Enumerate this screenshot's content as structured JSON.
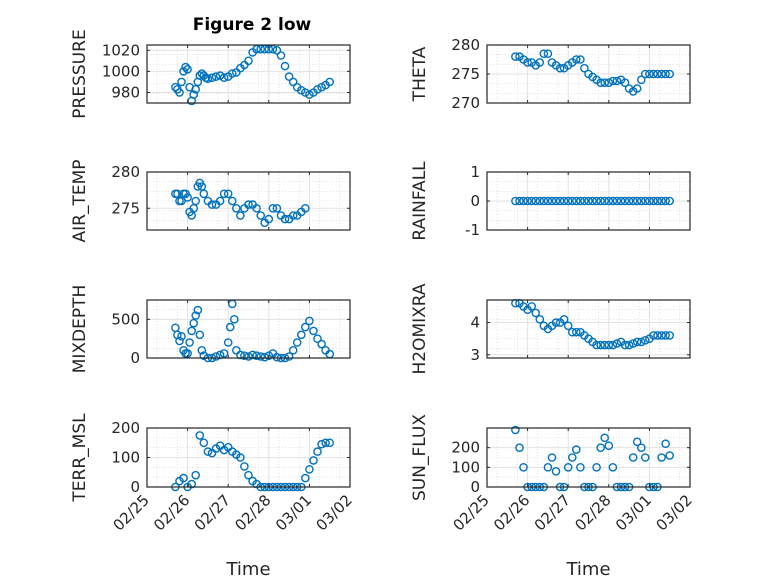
{
  "chart_data": {
    "title": "Figure 2 low",
    "type": "scatter",
    "marker": "open-circle",
    "color": "#0072BD",
    "x_ticks": [
      "02/25",
      "02/26",
      "02/27",
      "02/28",
      "03/01",
      "03/02"
    ],
    "x_range": [
      0,
      5
    ],
    "xlabel": "Time",
    "grid": true,
    "panels": [
      {
        "ylabel": "PRESSURE",
        "ylim": [
          970,
          1025
        ],
        "yticks": [
          980,
          1000,
          1020
        ],
        "x": [
          0.7,
          0.75,
          0.8,
          0.85,
          0.9,
          0.95,
          1.0,
          1.05,
          1.1,
          1.15,
          1.2,
          1.25,
          1.3,
          1.35,
          1.4,
          1.45,
          1.5,
          1.6,
          1.7,
          1.8,
          1.9,
          2.0,
          2.1,
          2.2,
          2.3,
          2.4,
          2.5,
          2.6,
          2.7,
          2.8,
          2.9,
          3.0,
          3.1,
          3.2,
          3.3,
          3.4,
          3.5,
          3.6,
          3.7,
          3.8,
          3.9,
          4.0,
          4.1,
          4.2,
          4.3,
          4.4,
          4.5
        ],
        "y": [
          985,
          983,
          980,
          990,
          1000,
          1004,
          1002,
          985,
          972,
          978,
          983,
          990,
          996,
          998,
          996,
          994,
          993,
          994,
          995,
          996,
          994,
          995,
          998,
          999,
          1003,
          1006,
          1010,
          1018,
          1021,
          1021,
          1021,
          1021,
          1021,
          1020,
          1015,
          1005,
          995,
          990,
          985,
          982,
          980,
          978,
          980,
          983,
          985,
          987,
          990
        ]
      },
      {
        "ylabel": "THETA",
        "ylim": [
          270,
          280
        ],
        "yticks": [
          270,
          275,
          280
        ],
        "x": [
          0.7,
          0.8,
          0.9,
          1.0,
          1.1,
          1.2,
          1.3,
          1.4,
          1.5,
          1.6,
          1.7,
          1.8,
          1.9,
          2.0,
          2.1,
          2.2,
          2.3,
          2.4,
          2.5,
          2.6,
          2.7,
          2.8,
          2.9,
          3.0,
          3.1,
          3.2,
          3.3,
          3.4,
          3.5,
          3.6,
          3.7,
          3.8,
          3.9,
          4.0,
          4.1,
          4.2,
          4.3,
          4.4,
          4.5
        ],
        "y": [
          278,
          278,
          277.5,
          277,
          277,
          276.5,
          277,
          278.5,
          278.5,
          277,
          276.5,
          276,
          276,
          276.5,
          277,
          277.5,
          277.5,
          276,
          275,
          274.5,
          274,
          273.5,
          273.5,
          273.5,
          273.8,
          273.8,
          274,
          273.5,
          272.5,
          272,
          272.5,
          274,
          275,
          275,
          275,
          275,
          275,
          275,
          275
        ]
      },
      {
        "ylabel": "AIR_TEMP",
        "ylim": [
          272,
          280
        ],
        "yticks": [
          275,
          280
        ],
        "x": [
          0.7,
          0.75,
          0.8,
          0.85,
          0.9,
          0.95,
          1.0,
          1.05,
          1.1,
          1.15,
          1.2,
          1.25,
          1.3,
          1.35,
          1.4,
          1.5,
          1.6,
          1.7,
          1.8,
          1.9,
          2.0,
          2.1,
          2.2,
          2.3,
          2.4,
          2.5,
          2.6,
          2.7,
          2.8,
          2.9,
          3.0,
          3.1,
          3.2,
          3.3,
          3.4,
          3.5,
          3.6,
          3.7,
          3.8,
          3.9
        ],
        "y": [
          277,
          277,
          276,
          276,
          277,
          277,
          276.5,
          274.5,
          274,
          275,
          276,
          278,
          278.5,
          278,
          277,
          276,
          275.5,
          275.5,
          276,
          277,
          277,
          276,
          275,
          274,
          275,
          275.5,
          275.5,
          275,
          274,
          273,
          273.5,
          275,
          275,
          274,
          273.5,
          273.5,
          274,
          274,
          274.5,
          275
        ]
      },
      {
        "ylabel": "RAINFALL",
        "ylim": [
          -1,
          1
        ],
        "yticks": [
          -1,
          0,
          1
        ],
        "x": [
          0.7,
          0.8,
          0.9,
          1.0,
          1.1,
          1.2,
          1.3,
          1.4,
          1.5,
          1.6,
          1.7,
          1.8,
          1.9,
          2.0,
          2.1,
          2.2,
          2.3,
          2.4,
          2.5,
          2.6,
          2.7,
          2.8,
          2.9,
          3.0,
          3.1,
          3.2,
          3.3,
          3.4,
          3.5,
          3.6,
          3.7,
          3.8,
          3.9,
          4.0,
          4.1,
          4.2,
          4.3,
          4.4,
          4.5
        ],
        "y": [
          0,
          0,
          0,
          0,
          0,
          0,
          0,
          0,
          0,
          0,
          0,
          0,
          0,
          0,
          0,
          0,
          0,
          0,
          0,
          0,
          0,
          0,
          0,
          0,
          0,
          0,
          0,
          0,
          0,
          0,
          0,
          0,
          0,
          0,
          0,
          0,
          0,
          0,
          0
        ]
      },
      {
        "ylabel": "MIXDEPTH",
        "ylim": [
          0,
          750
        ],
        "yticks": [
          0,
          500
        ],
        "x": [
          0.7,
          0.75,
          0.8,
          0.85,
          0.9,
          0.95,
          1.0,
          1.05,
          1.1,
          1.15,
          1.2,
          1.25,
          1.3,
          1.35,
          1.4,
          1.5,
          1.6,
          1.7,
          1.8,
          1.9,
          2.0,
          2.05,
          2.1,
          2.15,
          2.2,
          2.3,
          2.4,
          2.5,
          2.6,
          2.7,
          2.8,
          2.9,
          3.0,
          3.1,
          3.2,
          3.3,
          3.4,
          3.5,
          3.6,
          3.7,
          3.8,
          3.9,
          4.0,
          4.1,
          4.2,
          4.3,
          4.4,
          4.5
        ],
        "y": [
          390,
          300,
          220,
          280,
          100,
          60,
          60,
          200,
          350,
          450,
          550,
          620,
          300,
          100,
          30,
          0,
          0,
          20,
          40,
          60,
          200,
          400,
          700,
          500,
          100,
          40,
          30,
          20,
          40,
          30,
          20,
          10,
          30,
          60,
          10,
          0,
          0,
          20,
          100,
          200,
          300,
          400,
          480,
          350,
          250,
          180,
          100,
          50
        ]
      },
      {
        "ylabel": "H2OMIXRA",
        "ylim": [
          2.9,
          4.7
        ],
        "yticks": [
          3,
          4
        ],
        "x": [
          0.7,
          0.8,
          0.9,
          1.0,
          1.1,
          1.2,
          1.3,
          1.4,
          1.5,
          1.6,
          1.7,
          1.8,
          1.9,
          2.0,
          2.1,
          2.2,
          2.3,
          2.4,
          2.5,
          2.6,
          2.7,
          2.8,
          2.9,
          3.0,
          3.1,
          3.2,
          3.3,
          3.4,
          3.5,
          3.6,
          3.7,
          3.8,
          3.9,
          4.0,
          4.1,
          4.2,
          4.3,
          4.4,
          4.5
        ],
        "y": [
          4.6,
          4.6,
          4.5,
          4.4,
          4.5,
          4.3,
          4.1,
          3.9,
          3.8,
          3.9,
          4.0,
          4.0,
          4.1,
          3.9,
          3.7,
          3.7,
          3.7,
          3.6,
          3.5,
          3.4,
          3.3,
          3.3,
          3.3,
          3.3,
          3.3,
          3.35,
          3.4,
          3.3,
          3.3,
          3.35,
          3.4,
          3.4,
          3.45,
          3.5,
          3.6,
          3.6,
          3.6,
          3.6,
          3.6
        ]
      },
      {
        "ylabel": "TERR_MSL",
        "ylim": [
          0,
          200
        ],
        "yticks": [
          0,
          100,
          200
        ],
        "x": [
          0.7,
          0.8,
          0.9,
          1.0,
          1.1,
          1.2,
          1.3,
          1.4,
          1.5,
          1.6,
          1.7,
          1.8,
          1.9,
          2.0,
          2.1,
          2.2,
          2.3,
          2.4,
          2.5,
          2.6,
          2.7,
          2.8,
          2.9,
          3.0,
          3.1,
          3.2,
          3.3,
          3.4,
          3.5,
          3.6,
          3.7,
          3.8,
          3.9,
          4.0,
          4.1,
          4.2,
          4.3,
          4.4,
          4.5
        ],
        "y": [
          0,
          20,
          30,
          0,
          10,
          40,
          175,
          150,
          120,
          115,
          130,
          140,
          125,
          135,
          120,
          110,
          100,
          70,
          40,
          20,
          10,
          0,
          0,
          0,
          0,
          0,
          0,
          0,
          0,
          0,
          0,
          0,
          30,
          60,
          90,
          120,
          145,
          150,
          150
        ]
      },
      {
        "ylabel": "SUN_FLUX",
        "ylim": [
          0,
          300
        ],
        "yticks": [
          0,
          100,
          200
        ],
        "x": [
          0.7,
          0.8,
          0.9,
          1.0,
          1.1,
          1.2,
          1.3,
          1.4,
          1.5,
          1.6,
          1.7,
          1.8,
          1.9,
          2.0,
          2.1,
          2.2,
          2.3,
          2.4,
          2.5,
          2.6,
          2.7,
          2.8,
          2.9,
          3.0,
          3.1,
          3.2,
          3.3,
          3.4,
          3.5,
          3.6,
          3.7,
          3.8,
          3.9,
          4.0,
          4.1,
          4.2,
          4.3,
          4.4,
          4.5
        ],
        "y": [
          290,
          200,
          100,
          0,
          0,
          0,
          0,
          0,
          100,
          150,
          80,
          0,
          0,
          100,
          150,
          190,
          100,
          0,
          0,
          0,
          100,
          200,
          250,
          210,
          100,
          0,
          0,
          0,
          0,
          150,
          230,
          200,
          150,
          0,
          0,
          0,
          150,
          220,
          160
        ]
      }
    ]
  }
}
